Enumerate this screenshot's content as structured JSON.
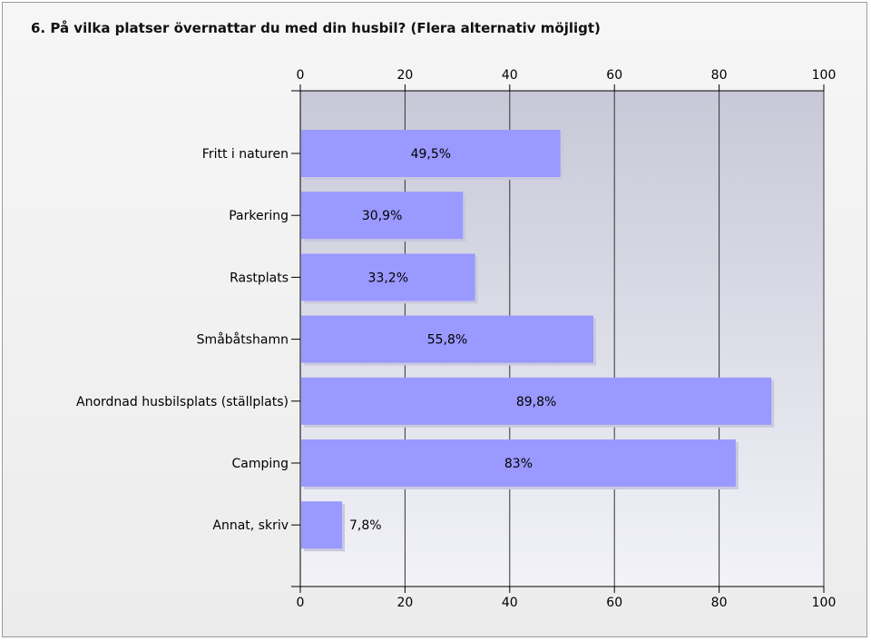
{
  "title": "6. På vilka platser övernattar du med din husbil? (Flera alternativ möjligt)",
  "chart_data": {
    "type": "bar",
    "orientation": "horizontal",
    "categories": [
      "Fritt i naturen",
      "Parkering",
      "Rastplats",
      "Småbåtshamn",
      "Anordnad husbilsplats (ställplats)",
      "Camping",
      "Annat, skriv"
    ],
    "values": [
      49.5,
      30.9,
      33.2,
      55.8,
      89.8,
      83,
      7.8
    ],
    "value_labels": [
      "49,5%",
      "30,9%",
      "33,2%",
      "55,8%",
      "89,8%",
      "83%",
      "7,8%"
    ],
    "xlim": [
      0,
      100
    ],
    "x_ticks": [
      "0",
      "20",
      "40",
      "60",
      "80",
      "100"
    ],
    "axis_position": "top and bottom",
    "grid": true,
    "colors": {
      "bar": "#9999ff",
      "bar_shadow": "#c9c9de",
      "plot_top": "#c8c8d8",
      "plot_bottom": "#f2f2f8",
      "grid": "#333333"
    }
  }
}
